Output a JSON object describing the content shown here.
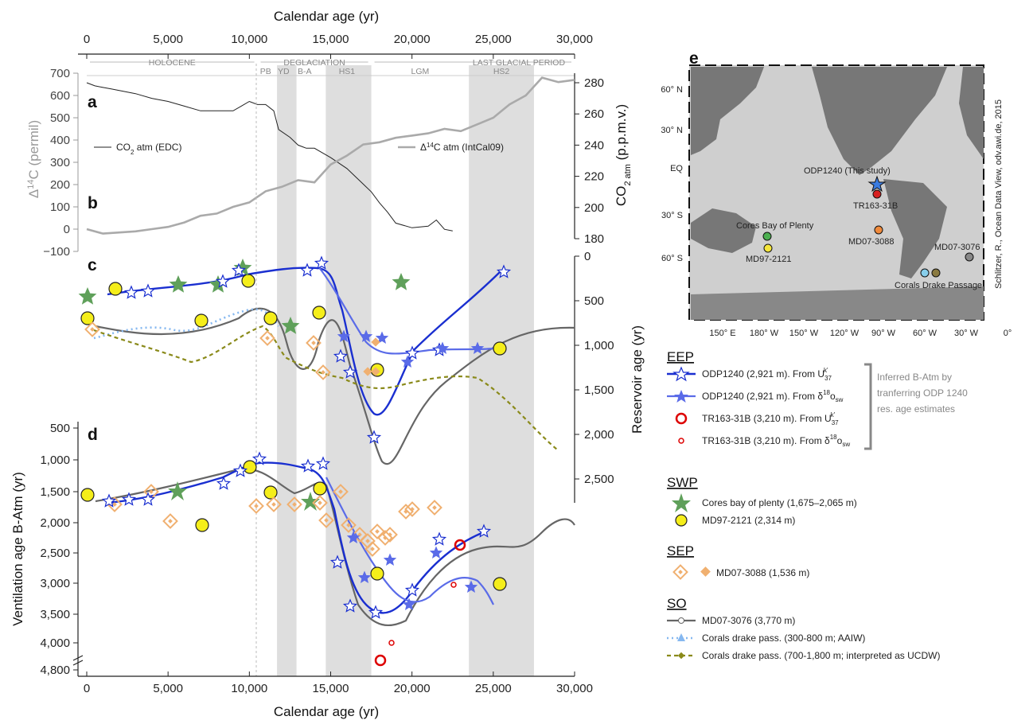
{
  "chart_data": [
    {
      "id": "ab",
      "type": "line",
      "panel_labels": [
        "a",
        "b"
      ],
      "top_xlabel": "Calendar age (yr)",
      "x_ticks": [
        0,
        5000,
        10000,
        15000,
        20000,
        25000,
        30000
      ],
      "x_tick_labels": [
        "0",
        "5,000",
        "10,000",
        "15,000",
        "20,000",
        "25,000",
        "30,000"
      ],
      "y_left_label": "Δ14C (permil)",
      "y_left_ticks": [
        -100,
        0,
        100,
        200,
        300,
        400,
        500,
        600,
        700
      ],
      "y_left_tick_labels": [
        "−100",
        "0",
        "100",
        "200",
        "300",
        "400",
        "500",
        "600",
        "700"
      ],
      "y_right_label": "CO2 atm (p.p.m.v.)",
      "y_right_ticks": [
        180,
        200,
        220,
        240,
        260,
        280
      ],
      "periods": [
        {
          "label": "HOLOCENE",
          "x0": 0,
          "x1": 10500
        },
        {
          "label": "DEGLACIATION",
          "x0": 10500,
          "x1": 17500
        },
        {
          "label": "LAST GLACIAL PERIOD",
          "x0": 17500,
          "x1": 30000
        }
      ],
      "subperiods": [
        {
          "label": "PB",
          "x": 11000
        },
        {
          "label": "YD",
          "x": 12100
        },
        {
          "label": "B-A",
          "x": 13400
        },
        {
          "label": "HS1",
          "x": 16000
        },
        {
          "label": "LGM",
          "x": 20500
        },
        {
          "label": "HS2",
          "x": 25500
        }
      ],
      "series": [
        {
          "name": "CO2 atm (EDC)",
          "axis": "right",
          "color": "#222222",
          "x": [
            0,
            500,
            1000,
            1500,
            2000,
            3000,
            4000,
            5000,
            6000,
            7000,
            8000,
            9000,
            9500,
            10000,
            10500,
            11000,
            11500,
            11800,
            12500,
            13000,
            13500,
            14000,
            14500,
            15000,
            16000,
            17000,
            17500,
            18000,
            18500,
            19000,
            20000,
            21000,
            21500,
            22000,
            22500
          ],
          "values": [
            280,
            278,
            277,
            276,
            275,
            273,
            270,
            268,
            265,
            262,
            262,
            262,
            265,
            268,
            266,
            266,
            262,
            250,
            245,
            240,
            238,
            238,
            235,
            232,
            225,
            215,
            210,
            203,
            197,
            190,
            187,
            188,
            192,
            186,
            185
          ]
        },
        {
          "name": "Δ14C atm (IntCal09)",
          "axis": "left",
          "color": "#aaaaaa",
          "x": [
            0,
            1000,
            2000,
            3000,
            4000,
            5000,
            6000,
            7000,
            8000,
            9000,
            10000,
            11000,
            12000,
            13000,
            14000,
            15000,
            16000,
            17000,
            18000,
            19000,
            20000,
            21000,
            22000,
            23000,
            24000,
            25000,
            26000,
            27000,
            28000,
            29000,
            30000
          ],
          "values": [
            0,
            -20,
            -15,
            -10,
            0,
            10,
            30,
            60,
            70,
            100,
            120,
            170,
            190,
            220,
            210,
            290,
            330,
            380,
            390,
            410,
            420,
            430,
            450,
            440,
            470,
            500,
            560,
            600,
            680,
            660,
            670
          ]
        }
      ],
      "legend": [
        "CO2 atm (EDC)",
        "Δ14C atm (IntCal09)"
      ]
    },
    {
      "id": "c",
      "type": "line",
      "panel_label": "c",
      "y_right_label": "Reservoir age (yr)",
      "y_right_ticks": [
        0,
        500,
        1000,
        1500,
        2000,
        2500
      ],
      "y_right_tick_labels": [
        "0",
        "500",
        "1,000",
        "1,500",
        "2,000",
        "2,500"
      ]
    },
    {
      "id": "d",
      "type": "line",
      "panel_label": "d",
      "xlabel": "Calendar age (yr)",
      "y_left_label": "Ventilation age B-Atm (yr)",
      "y_left_ticks": [
        500,
        1000,
        1500,
        2000,
        2500,
        3000,
        3500,
        4000,
        4800
      ],
      "y_left_tick_labels": [
        "500",
        "1,000",
        "1,500",
        "2,000",
        "2,500",
        "3,000",
        "3,500",
        "4,000",
        "4,800"
      ]
    }
  ],
  "shaded_intervals": [
    {
      "x0": 11700,
      "x1": 12900
    },
    {
      "x0": 14700,
      "x1": 17500
    },
    {
      "x0": 23500,
      "x1": 27500
    }
  ],
  "legend": {
    "groups": [
      {
        "heading": "EEP",
        "items": [
          {
            "label_main": "ODP1240 (2,921 m). From U",
            "label_sub": "37",
            "label_sup": "k'"
          },
          {
            "label_main": "ODP1240 (2,921 m). From δ",
            "label_sup": "18",
            "label_end": "o",
            "label_sub": "sw"
          },
          {
            "label_main": "TR163-31B (3,210 m). From U",
            "label_sub": "37",
            "label_sup": "k'"
          },
          {
            "label_main": "TR163-31B (3,210 m). From δ",
            "label_sup": "18",
            "label_end": "o",
            "label_sub": "sw"
          }
        ]
      },
      {
        "heading": "SWP",
        "items": [
          {
            "label_main": "Cores bay of plenty (1,675–2,065 m)"
          },
          {
            "label_main": "MD97-2121 (2,314 m)"
          }
        ]
      },
      {
        "heading": "SEP",
        "items": [
          {
            "label_main": "MD07-3088 (1,536 m)"
          }
        ]
      },
      {
        "heading": "SO",
        "items": [
          {
            "label_main": "MD07-3076 (3,770 m)"
          },
          {
            "label_main": "Corals drake pass. (300-800 m; AAIW)"
          },
          {
            "label_main": "Corals drake pass. (700-1,800 m; interpreted as UCDW)"
          }
        ]
      }
    ],
    "bracket_note": [
      "Inferred B-Atm by",
      "tranferring ODP 1240",
      "res. age estimates"
    ]
  },
  "map": {
    "panel_label": "e",
    "lat_labels": [
      "60° N",
      "30° N",
      "EQ",
      "30° S",
      "60° S"
    ],
    "lon_labels": [
      "150° E",
      "180° W",
      "150° W",
      "120° W",
      "90° W",
      "60° W",
      "30° W",
      "0°"
    ],
    "credit": "Schlitzer, R., Ocean Data View, odv.awi.de, 2015",
    "sites": [
      {
        "label": "ODP1240 (This study)",
        "color": "#3a7be0"
      },
      {
        "label": "TR163-31B",
        "color": "#d62020"
      },
      {
        "label": "MD07-3088",
        "color": "#f08a3c"
      },
      {
        "label": "Cores Bay of Plenty",
        "color": "#4caf50"
      },
      {
        "label": "MD97-2121",
        "color": "#f5e63c"
      },
      {
        "label": "MD07-3076",
        "color": "#888888"
      },
      {
        "label": "Corals Drake Passage",
        "color": "#87ceeb"
      }
    ]
  }
}
